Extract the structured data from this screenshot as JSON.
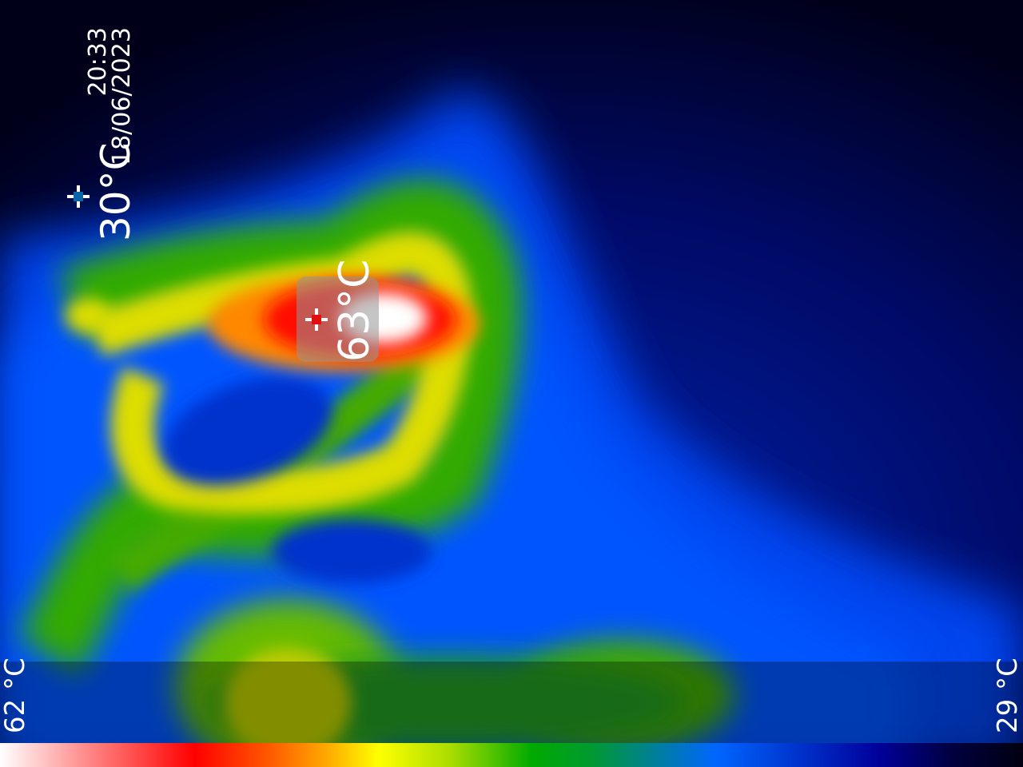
{
  "overlay": {
    "time": "20:33",
    "date": "18/06/2023",
    "spot_temperature": "30°C",
    "hotspot_temperature": "63°C"
  },
  "scale": {
    "max_label": "62 °C",
    "min_label": "29 °C"
  },
  "icons": {
    "spot_marker": "crosshair-icon",
    "hotspot_marker": "crosshair-icon"
  },
  "colors": {
    "palette": [
      "#ffffff",
      "#ff0000",
      "#ffff00",
      "#00aa00",
      "#0066ff",
      "#000040"
    ],
    "spot_marker": "#0a66a8",
    "hotspot_marker": "#e01010"
  }
}
